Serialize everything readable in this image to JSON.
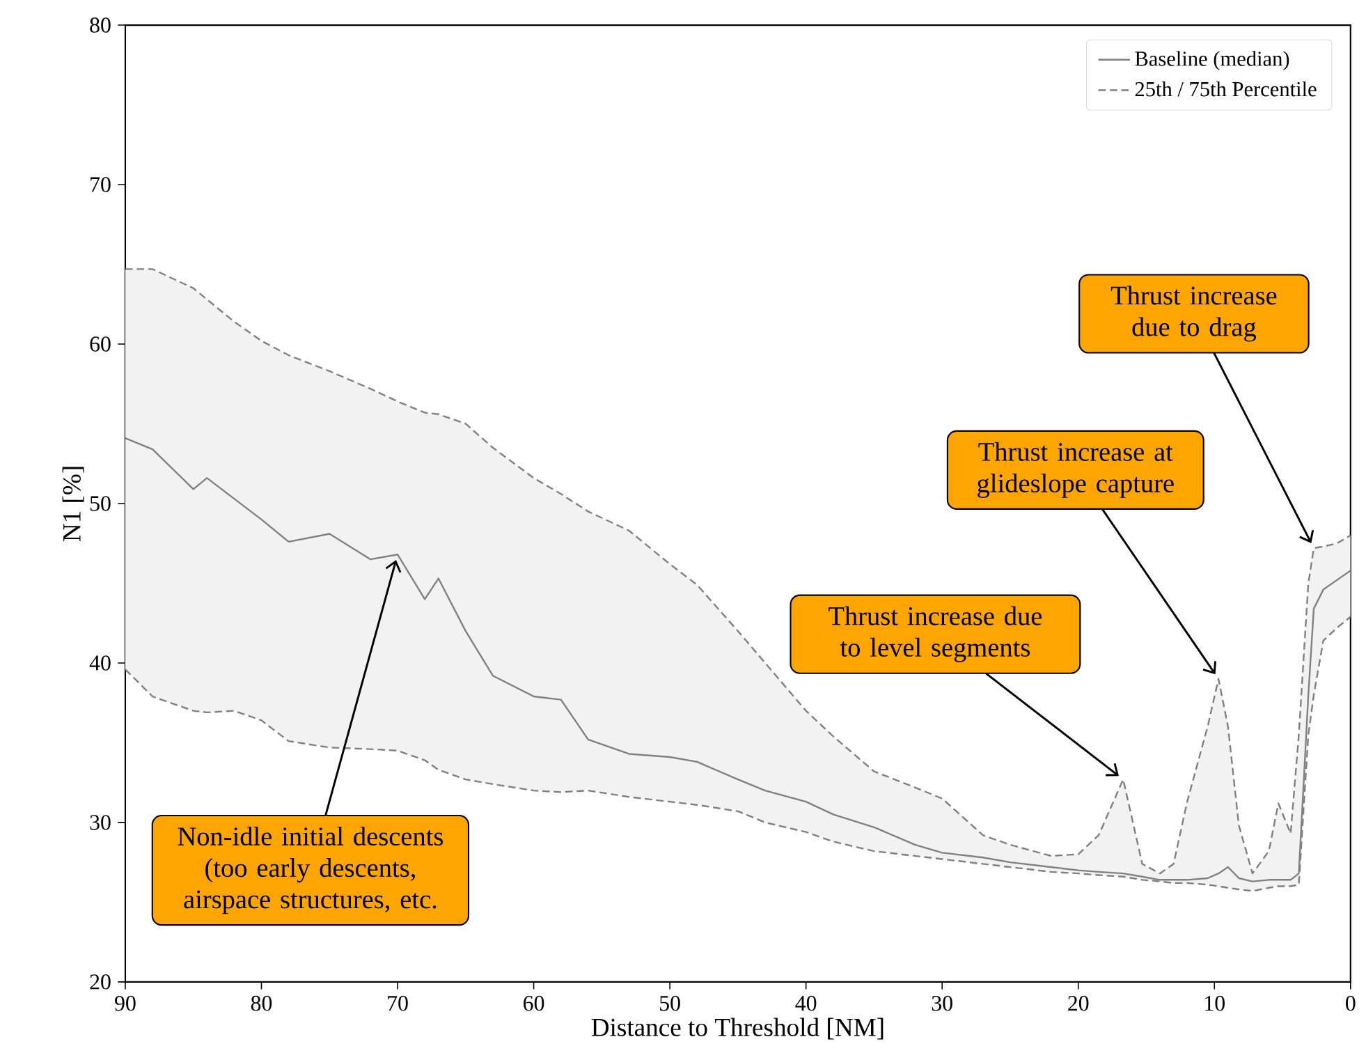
{
  "chart_data": {
    "type": "line",
    "xlabel": "Distance to Threshold [NM]",
    "ylabel": "N1 [%]",
    "xlim": [
      90,
      0
    ],
    "ylim": [
      20,
      80
    ],
    "xticks": [
      90,
      80,
      70,
      60,
      50,
      40,
      30,
      20,
      10,
      0
    ],
    "yticks": [
      20,
      30,
      40,
      50,
      60,
      70,
      80
    ],
    "legend": "top right",
    "grid": false,
    "x": [
      90,
      88,
      85,
      84,
      82,
      80,
      78,
      75,
      72,
      70,
      68,
      67,
      65,
      63,
      60,
      58,
      56,
      53,
      50,
      48,
      45,
      43,
      40,
      38,
      35,
      32,
      30,
      27,
      25,
      22,
      20,
      18.5,
      16.7,
      15.3,
      14,
      13,
      12,
      10.5,
      9.7,
      9,
      8.2,
      7.2,
      6,
      5.3,
      4.4,
      3.8,
      3.1,
      2.7,
      2,
      1,
      0
    ],
    "series": [
      {
        "name": "Baseline (median)",
        "color": "#808080",
        "line_style": "solid",
        "values": [
          54.1,
          53.4,
          50.9,
          51.6,
          50.3,
          49.0,
          47.6,
          48.1,
          46.5,
          46.8,
          44.0,
          45.3,
          42.0,
          39.2,
          37.9,
          37.7,
          35.2,
          34.3,
          34.1,
          33.8,
          32.7,
          32.0,
          31.3,
          30.5,
          29.7,
          28.6,
          28.1,
          27.8,
          27.5,
          27.2,
          27.0,
          26.9,
          26.8,
          26.6,
          26.4,
          26.4,
          26.4,
          26.5,
          26.8,
          27.2,
          26.5,
          26.3,
          26.4,
          26.4,
          26.4,
          26.8,
          38.0,
          43.4,
          44.6,
          45.2,
          45.8
        ],
        "lower": [
          39.6,
          37.9,
          37.0,
          36.9,
          37.0,
          36.4,
          35.1,
          34.7,
          34.6,
          34.5,
          33.9,
          33.3,
          32.7,
          32.4,
          32.0,
          31.9,
          32.0,
          31.6,
          31.3,
          31.1,
          30.7,
          30.0,
          29.4,
          28.8,
          28.2,
          27.9,
          27.7,
          27.4,
          27.2,
          26.9,
          26.8,
          26.7,
          26.6,
          26.4,
          26.3,
          26.2,
          26.2,
          26.1,
          26.0,
          25.9,
          25.8,
          25.7,
          25.9,
          26.0,
          26.0,
          26.1,
          35.5,
          38.0,
          41.4,
          42.2,
          42.9
        ],
        "upper": [
          64.7,
          64.7,
          63.5,
          62.8,
          61.4,
          60.2,
          59.3,
          58.3,
          57.2,
          56.4,
          55.7,
          55.6,
          55.0,
          53.5,
          51.6,
          50.6,
          49.5,
          48.3,
          46.2,
          44.9,
          42.0,
          40.0,
          37.0,
          35.4,
          33.2,
          32.2,
          31.5,
          29.2,
          28.6,
          27.9,
          28.0,
          29.2,
          32.7,
          27.4,
          26.8,
          27.4,
          31.3,
          36.0,
          39.0,
          36.0,
          29.8,
          26.8,
          28.2,
          31.2,
          29.3,
          35.5,
          45.0,
          47.2,
          47.3,
          47.5,
          48.0
        ]
      },
      {
        "name": "25th / 75th Percentile",
        "color": "#808080",
        "line_style": "dashed",
        "values": [
          64.7,
          64.7,
          63.5,
          62.8,
          61.4,
          60.2,
          59.3,
          58.3,
          57.2,
          56.4,
          55.7,
          55.6,
          55.0,
          53.5,
          51.6,
          50.6,
          49.5,
          48.3,
          46.2,
          44.9,
          42.0,
          40.0,
          37.0,
          35.4,
          33.2,
          32.2,
          31.5,
          29.2,
          28.6,
          27.9,
          28.0,
          29.2,
          32.7,
          27.4,
          26.8,
          27.4,
          31.3,
          36.0,
          39.0,
          36.0,
          29.8,
          26.8,
          28.2,
          31.2,
          29.3,
          35.5,
          45.0,
          47.2,
          47.3,
          47.5,
          48.0
        ]
      },
      {
        "color": "#808080",
        "line_style": "dashed",
        "values": [
          39.6,
          37.9,
          37.0,
          36.9,
          37.0,
          36.4,
          35.1,
          34.7,
          34.6,
          34.5,
          33.9,
          33.3,
          32.7,
          32.4,
          32.0,
          31.9,
          32.0,
          31.6,
          31.3,
          31.1,
          30.7,
          30.0,
          29.4,
          28.8,
          28.2,
          27.9,
          27.7,
          27.4,
          27.2,
          26.9,
          26.8,
          26.7,
          26.6,
          26.4,
          26.3,
          26.2,
          26.2,
          26.1,
          26.0,
          25.9,
          25.8,
          25.7,
          25.9,
          26.0,
          26.0,
          26.1,
          35.5,
          38.0,
          41.4,
          42.2,
          42.9
        ]
      }
    ],
    "annotations": [
      {
        "text": "Non-idle initial descents (too early descents, airspace structures, etc.",
        "x": 70,
        "y": 46.8
      },
      {
        "text": "Thrust increase due to level segments",
        "x": 16.7,
        "y": 32.7
      },
      {
        "text": "Thrust increase at glideslope capture",
        "x": 9.7,
        "y": 39.0
      },
      {
        "text": "Thrust increase due to drag",
        "x": 2.7,
        "y": 47.2
      }
    ]
  }
}
